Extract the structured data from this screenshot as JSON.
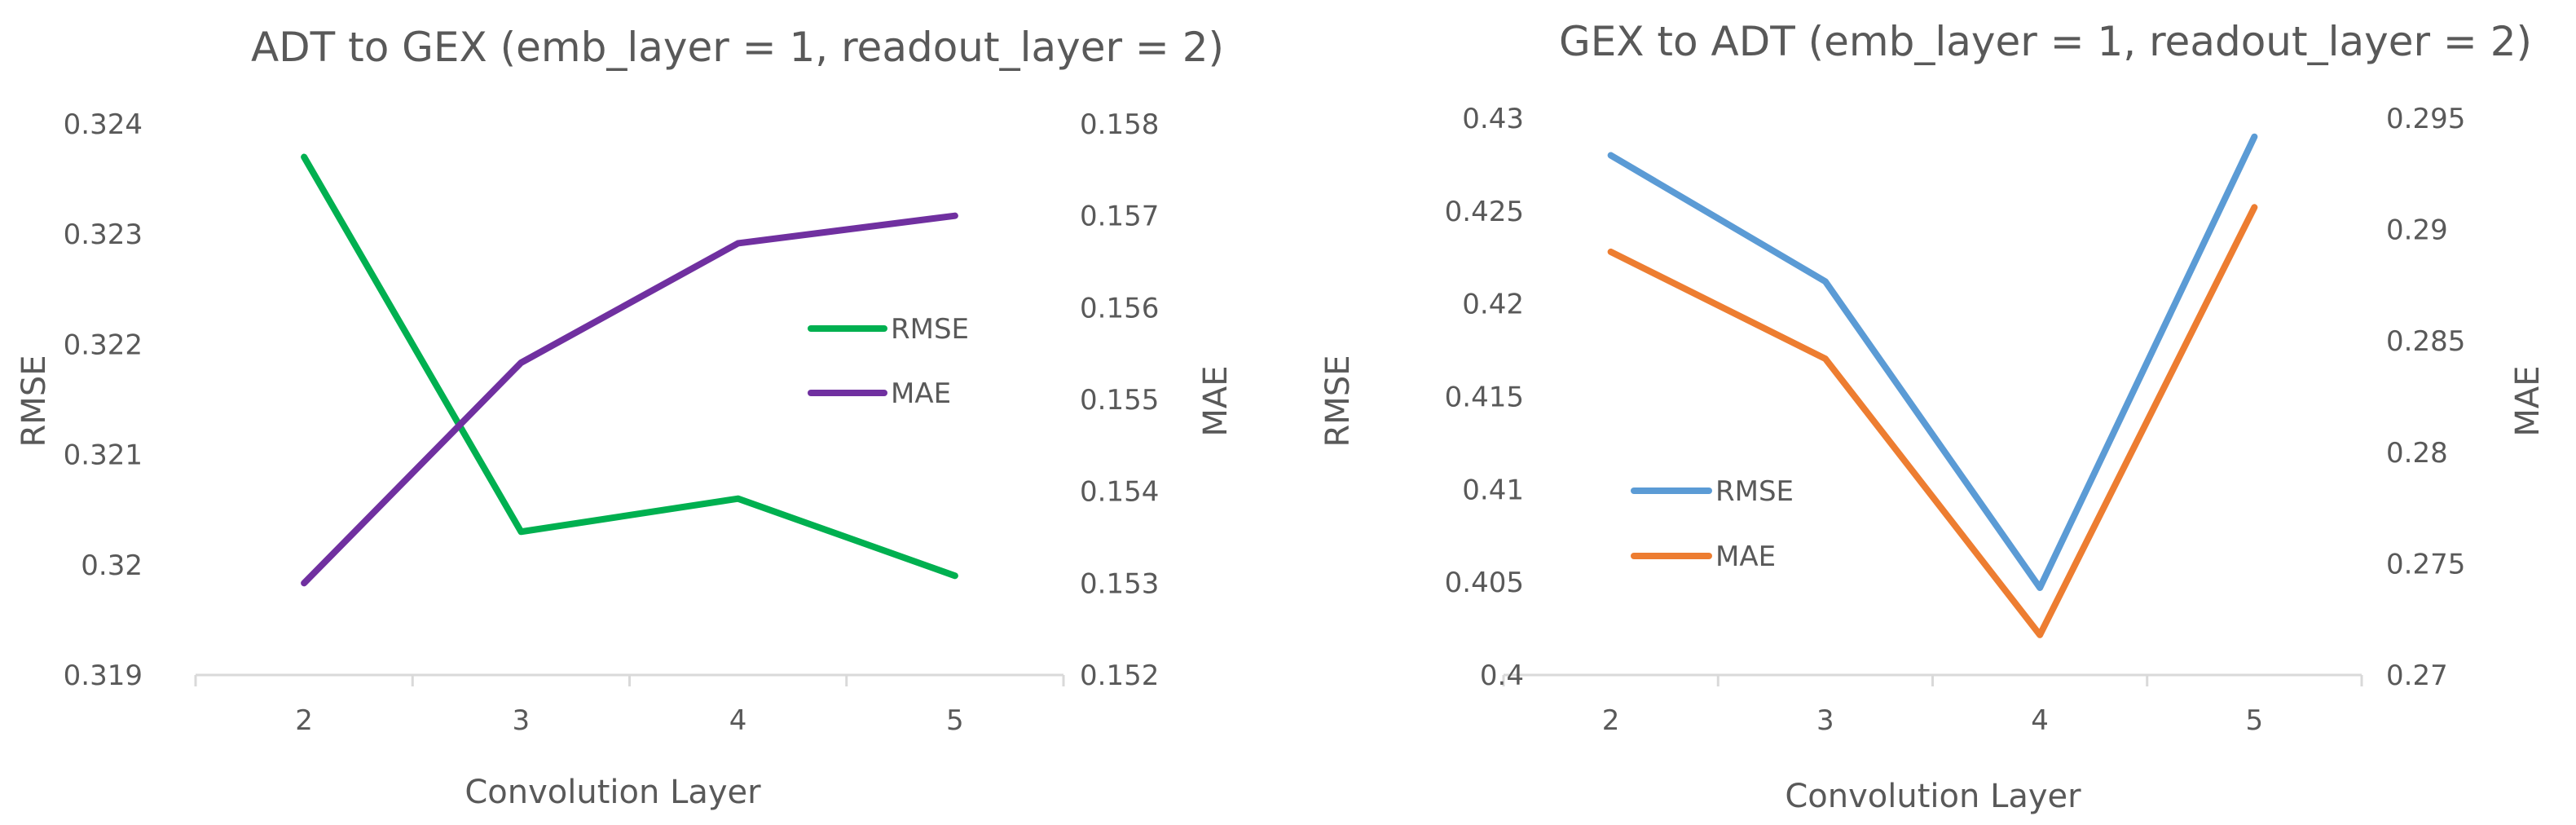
{
  "chart_data": [
    {
      "type": "line",
      "title": "ADT to GEX (emb_layer = 1, readout_layer = 2)",
      "xlabel": "Convolution Layer",
      "ylabel": "RMSE",
      "y2label": "MAE",
      "categories": [
        "2",
        "3",
        "4",
        "5"
      ],
      "ylim": [
        0.319,
        0.324
      ],
      "y_ticks": [
        "0.319",
        "0.32",
        "0.321",
        "0.322",
        "0.323",
        "0.324"
      ],
      "y2lim": [
        0.152,
        0.158
      ],
      "y2_ticks": [
        "0.152",
        "0.153",
        "0.154",
        "0.155",
        "0.156",
        "0.157",
        "0.158"
      ],
      "legend_position": "right",
      "grid": false,
      "series": [
        {
          "name": "RMSE",
          "axis": "left",
          "color": "#00B050",
          "values": [
            0.3237,
            0.3203,
            0.3206,
            0.3199
          ]
        },
        {
          "name": "MAE",
          "axis": "right",
          "color": "#7030A0",
          "values": [
            0.153,
            0.1554,
            0.1567,
            0.157
          ]
        }
      ]
    },
    {
      "type": "line",
      "title": "GEX to ADT (emb_layer = 1, readout_layer = 2)",
      "xlabel": "Convolution Layer",
      "ylabel": "RMSE",
      "y2label": "MAE",
      "categories": [
        "2",
        "3",
        "4",
        "5"
      ],
      "ylim": [
        0.4,
        0.43
      ],
      "y_ticks": [
        "0.4",
        "0.405",
        "0.41",
        "0.415",
        "0.42",
        "0.425",
        "0.43"
      ],
      "y2lim": [
        0.27,
        0.295
      ],
      "y2_ticks": [
        "0.27",
        "0.275",
        "0.28",
        "0.285",
        "0.29",
        "0.295"
      ],
      "legend_position": "left",
      "grid": false,
      "series": [
        {
          "name": "RMSE",
          "axis": "left",
          "color": "#5B9BD5",
          "values": [
            0.428,
            0.4212,
            0.4047,
            0.429
          ]
        },
        {
          "name": "MAE",
          "axis": "right",
          "color": "#ED7D31",
          "values": [
            0.289,
            0.2842,
            0.2718,
            0.291
          ]
        }
      ]
    }
  ]
}
